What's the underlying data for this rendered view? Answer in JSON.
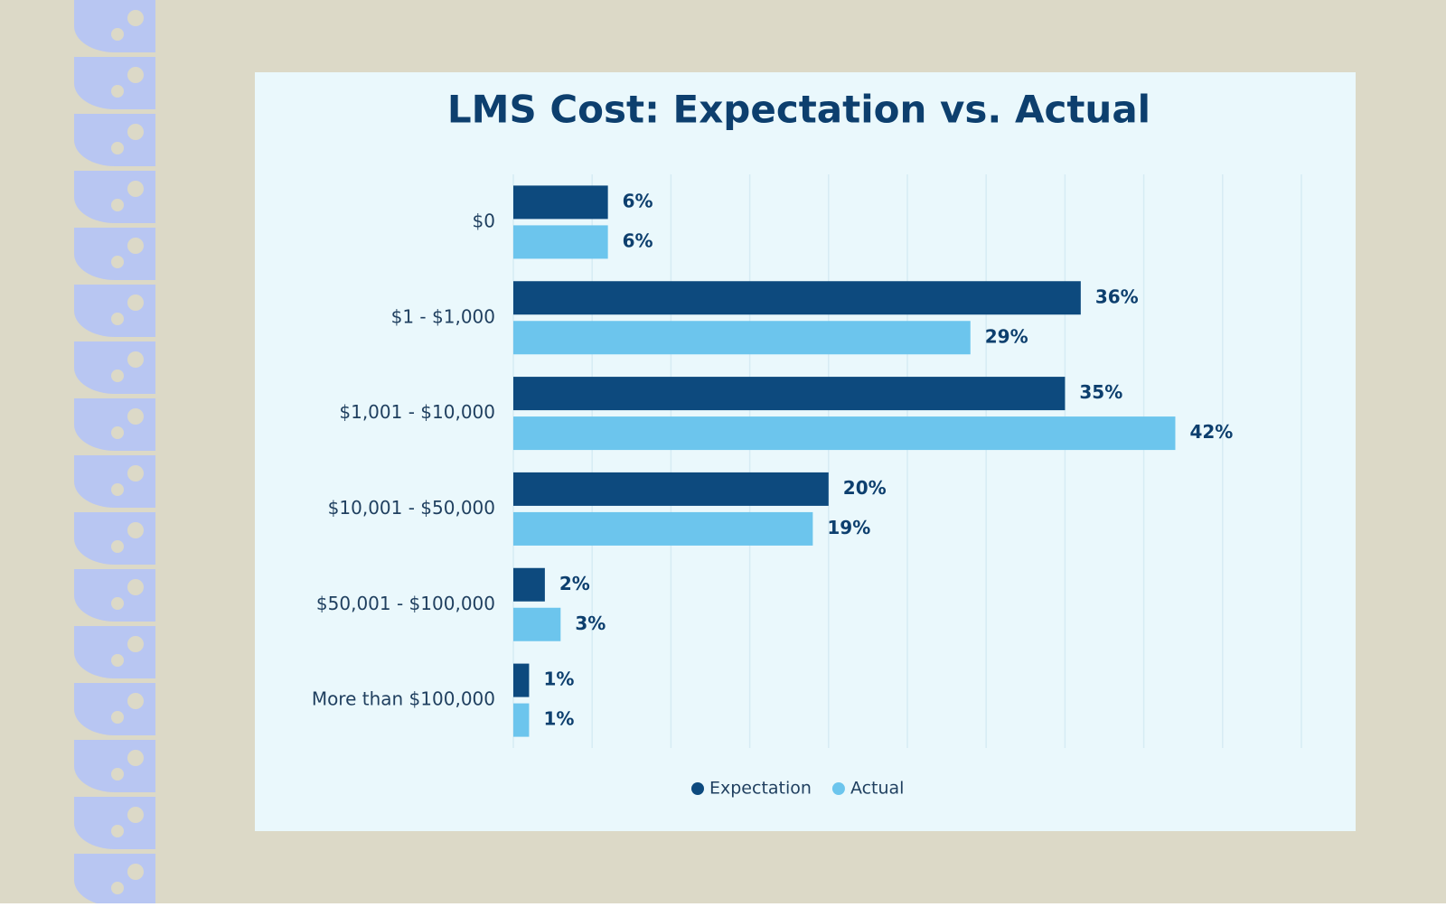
{
  "chart_data": {
    "type": "hbar",
    "title": "LMS Cost: Expectation vs. Actual",
    "categories": [
      "$0",
      "$1 - $1,000",
      "$1,001 - $10,000",
      "$10,001 - $50,000",
      "$50,001 - $100,000",
      "More than $100,000"
    ],
    "series": [
      {
        "name": "Expectation",
        "color": "#0d4a7e",
        "values": [
          6,
          36,
          35,
          20,
          2,
          1
        ],
        "value_labels": [
          "6%",
          "36%",
          "35%",
          "20%",
          "2%",
          "1%"
        ]
      },
      {
        "name": "Actual",
        "color": "#6cc5ed",
        "values": [
          6,
          29,
          42,
          19,
          3,
          1
        ],
        "value_labels": [
          "6%",
          "29%",
          "42%",
          "19%",
          "3%",
          "1%"
        ]
      }
    ],
    "xlim": [
      0,
      50
    ],
    "xticks": [
      0,
      5,
      10,
      15,
      20,
      25,
      30,
      35,
      40,
      45,
      50
    ],
    "grid": true,
    "legend": "bottom"
  }
}
